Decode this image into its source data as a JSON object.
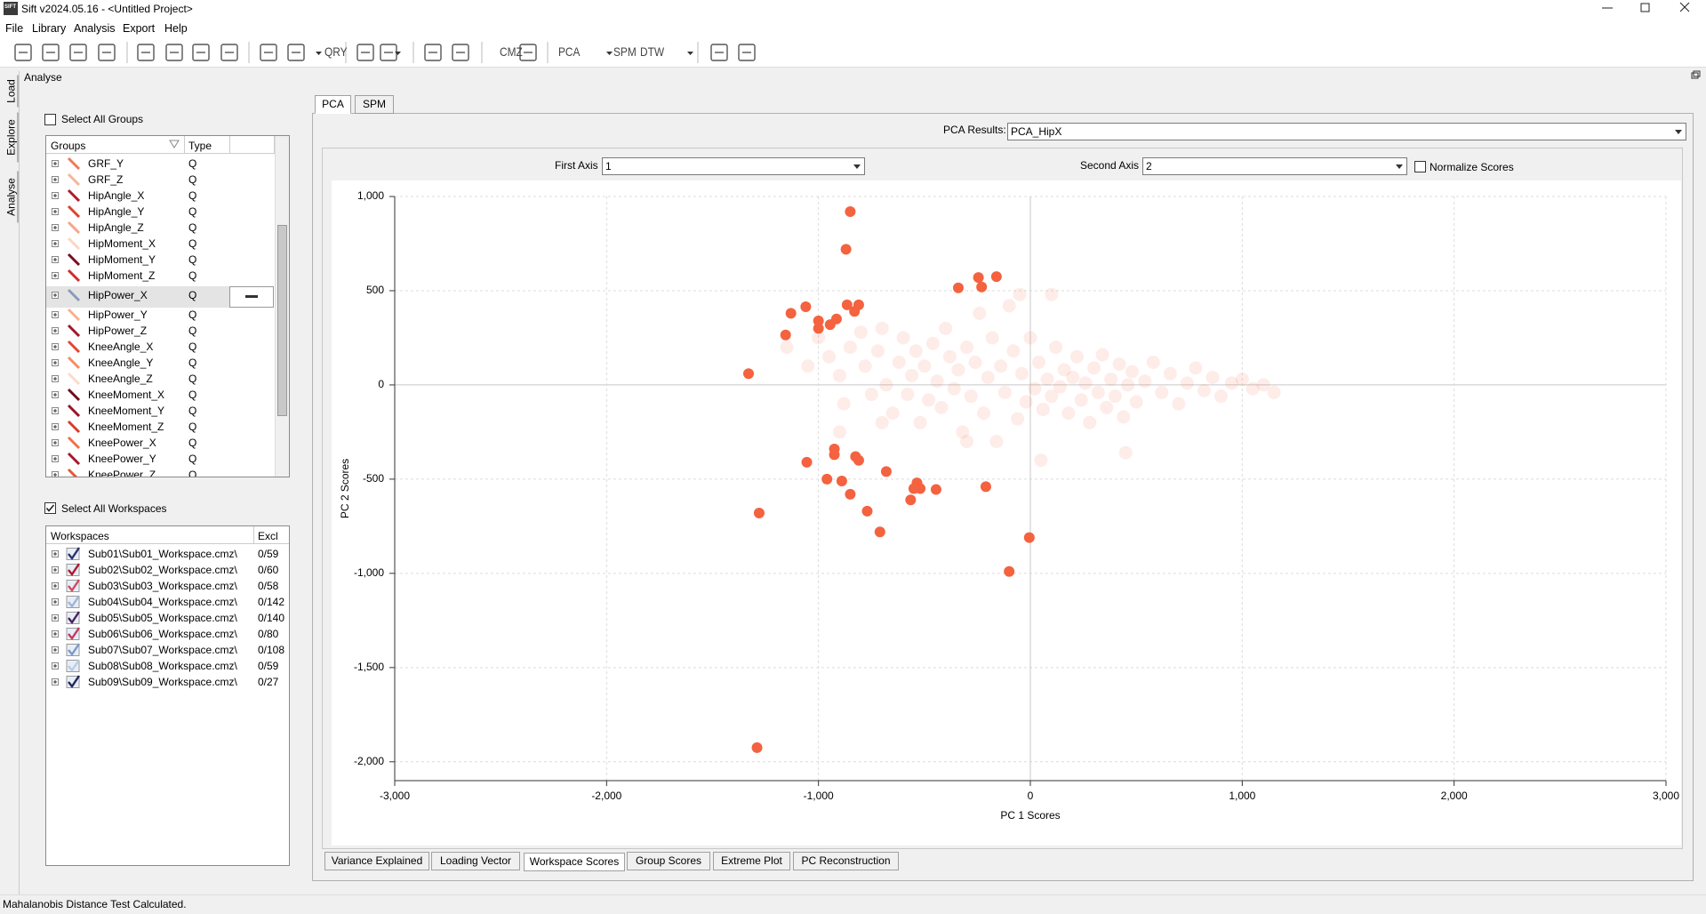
{
  "window": {
    "icon_text": "SIFT",
    "title": "Sift v2024.05.16 - <Untitled Project>"
  },
  "menu": [
    "File",
    "Library",
    "Analysis",
    "Export",
    "Help"
  ],
  "toolbar": {
    "labels": [
      "QRY",
      "CMZ",
      "PCA",
      "SPM",
      "DTW"
    ]
  },
  "side_tabs": [
    "Load",
    "Explore",
    "Analyse"
  ],
  "panel_title": "Analyse",
  "groups": {
    "select_all": "Select All Groups",
    "columns": [
      "Groups",
      "Type"
    ],
    "rows": [
      {
        "name": "GRF_Y",
        "type": "Q",
        "color": "#f07a52"
      },
      {
        "name": "GRF_Z",
        "type": "Q",
        "color": "#f7b49a"
      },
      {
        "name": "HipAngle_X",
        "type": "Q",
        "color": "#b0182a"
      },
      {
        "name": "HipAngle_Y",
        "type": "Q",
        "color": "#e0402e"
      },
      {
        "name": "HipAngle_Z",
        "type": "Q",
        "color": "#f6a488"
      },
      {
        "name": "HipMoment_X",
        "type": "Q",
        "color": "#fbd5c5"
      },
      {
        "name": "HipMoment_Y",
        "type": "Q",
        "color": "#7a0c20"
      },
      {
        "name": "HipMoment_Z",
        "type": "Q",
        "color": "#d42a2a"
      },
      {
        "name": "HipPower_X",
        "type": "Q",
        "color": "#8a9bb8"
      },
      {
        "name": "HipPower_Y",
        "type": "Q",
        "color": "#f8b08e"
      },
      {
        "name": "HipPower_Z",
        "type": "Q",
        "color": "#a3152a"
      },
      {
        "name": "KneeAngle_X",
        "type": "Q",
        "color": "#e4452f"
      },
      {
        "name": "KneeAngle_Y",
        "type": "Q",
        "color": "#f58c66"
      },
      {
        "name": "KneeAngle_Z",
        "type": "Q",
        "color": "#fcdacb"
      },
      {
        "name": "KneeMoment_X",
        "type": "Q",
        "color": "#6e0a1e"
      },
      {
        "name": "KneeMoment_Y",
        "type": "Q",
        "color": "#9c1228"
      },
      {
        "name": "KneeMoment_Z",
        "type": "Q",
        "color": "#d83a2c"
      },
      {
        "name": "KneePower_X",
        "type": "Q",
        "color": "#f0704a"
      },
      {
        "name": "KneePower_Y",
        "type": "Q",
        "color": "#a8162a"
      },
      {
        "name": "KneePower_Z",
        "type": "Q",
        "color": "#e05a3a"
      }
    ]
  },
  "workspaces": {
    "select_all": "Select All Workspaces",
    "columns": [
      "Workspaces",
      "Excl"
    ],
    "rows": [
      {
        "name": "Sub01\\Sub01_Workspace.cmz\\",
        "excl": "0/59",
        "color": "#2d2f6e"
      },
      {
        "name": "Sub02\\Sub02_Workspace.cmz\\",
        "excl": "0/60",
        "color": "#b0182a"
      },
      {
        "name": "Sub03\\Sub03_Workspace.cmz\\",
        "excl": "0/58",
        "color": "#d04a5a"
      },
      {
        "name": "Sub04\\Sub04_Workspace.cmz\\",
        "excl": "0/142",
        "color": "#9fb4d6"
      },
      {
        "name": "Sub05\\Sub05_Workspace.cmz\\",
        "excl": "0/140",
        "color": "#4a2060"
      },
      {
        "name": "Sub06\\Sub06_Workspace.cmz\\",
        "excl": "0/80",
        "color": "#c03a5a"
      },
      {
        "name": "Sub07\\Sub07_Workspace.cmz\\",
        "excl": "0/108",
        "color": "#7a9ac8"
      },
      {
        "name": "Sub08\\Sub08_Workspace.cmz\\",
        "excl": "0/59",
        "color": "#b8cce6"
      },
      {
        "name": "Sub09\\Sub09_Workspace.cmz\\",
        "excl": "0/27",
        "color": "#25265a"
      }
    ]
  },
  "tabs": [
    "PCA",
    "SPM"
  ],
  "pca_results": {
    "label": "PCA Results:",
    "value": "PCA_HipX"
  },
  "first_axis": {
    "label": "First Axis",
    "value": "1"
  },
  "second_axis": {
    "label": "Second Axis",
    "value": "2"
  },
  "normalize": "Normalize Scores",
  "chart_data": {
    "type": "scatter",
    "x_label": "PC 1 Scores",
    "y_label": "PC 2 Scores",
    "xlim": [
      -3000,
      3000
    ],
    "ylim": [
      -2100,
      1000
    ],
    "xticks": [
      {
        "value": -3000,
        "label": "-3,000"
      },
      {
        "value": -2000,
        "label": "-2,000"
      },
      {
        "value": -1000,
        "label": "-1,000"
      },
      0,
      {
        "value": 1000,
        "label": "1,000"
      },
      {
        "value": 2000,
        "label": "2,000"
      },
      {
        "value": 3000,
        "label": "3,000"
      }
    ],
    "yticks": [
      {
        "value": -2000,
        "label": "-2,000"
      },
      {
        "value": -1500,
        "label": "-1,500"
      },
      {
        "value": -1000,
        "label": "-1,000"
      },
      -500,
      0,
      500,
      {
        "value": 1000,
        "label": "1,000"
      }
    ],
    "grid": true,
    "series": [
      {
        "color": "#f4623f",
        "opacity": 0.12,
        "x": [
          -1150,
          -1050,
          -1000,
          -950,
          -900,
          -880,
          -850,
          -800,
          -780,
          -750,
          -720,
          -700,
          -680,
          -650,
          -620,
          -600,
          -580,
          -560,
          -540,
          -520,
          -500,
          -480,
          -460,
          -440,
          -420,
          -400,
          -380,
          -360,
          -340,
          -320,
          -300,
          -280,
          -260,
          -240,
          -220,
          -200,
          -180,
          -160,
          -140,
          -120,
          -100,
          -80,
          -60,
          -40,
          -20,
          0,
          20,
          40,
          60,
          80,
          100,
          120,
          140,
          160,
          180,
          200,
          220,
          240,
          260,
          280,
          300,
          320,
          340,
          360,
          380,
          400,
          420,
          440,
          460,
          480,
          500,
          540,
          580,
          620,
          660,
          700,
          740,
          780,
          820,
          860,
          900,
          950,
          1000,
          1050,
          1100,
          1150,
          -300,
          50,
          450,
          -50,
          100,
          -700,
          -900
        ],
        "values": [
          200,
          100,
          250,
          150,
          50,
          -100,
          200,
          280,
          100,
          -50,
          180,
          300,
          0,
          -150,
          120,
          250,
          -50,
          50,
          180,
          -200,
          100,
          -80,
          220,
          20,
          -120,
          300,
          150,
          -20,
          80,
          -250,
          200,
          -60,
          120,
          380,
          -150,
          40,
          250,
          -300,
          100,
          -40,
          420,
          180,
          -180,
          60,
          -90,
          250,
          -20,
          120,
          -130,
          30,
          -60,
          200,
          -10,
          80,
          -150,
          40,
          150,
          -80,
          10,
          -200,
          90,
          -40,
          160,
          -120,
          30,
          -60,
          110,
          -170,
          0,
          70,
          -90,
          20,
          120,
          -40,
          60,
          -100,
          10,
          90,
          -30,
          40,
          -60,
          10,
          30,
          -20,
          0,
          -40,
          -300,
          -400,
          -360,
          480,
          480,
          -200,
          -250
        ]
      },
      {
        "color": "#f4623f",
        "opacity": 1,
        "x": [
          -850,
          -870,
          -340,
          -245,
          -230,
          -160,
          -1060,
          -1130,
          -1000,
          -915,
          -865,
          -810,
          -830,
          -945,
          -1000,
          -1155,
          -1330,
          -1055,
          -925,
          -925,
          -825,
          -810,
          -680,
          -960,
          -890,
          -535,
          -520,
          -550,
          -445,
          -565,
          -210,
          -850,
          -770,
          -1280,
          -710,
          -5,
          -100,
          -1290
        ],
        "values": [
          920,
          720,
          515,
          570,
          520,
          575,
          415,
          380,
          340,
          350,
          425,
          425,
          390,
          320,
          300,
          265,
          60,
          -410,
          -340,
          -370,
          -380,
          -400,
          -460,
          -500,
          -510,
          -520,
          -550,
          -550,
          -555,
          -610,
          -540,
          -580,
          -670,
          -680,
          -780,
          -810,
          -990,
          -1925
        ]
      }
    ]
  },
  "bottom_tabs": [
    "Variance Explained",
    "Loading Vector",
    "Workspace Scores",
    "Group Scores",
    "Extreme Plot",
    "PC Reconstruction"
  ],
  "status": "Mahalanobis Distance Test Calculated."
}
